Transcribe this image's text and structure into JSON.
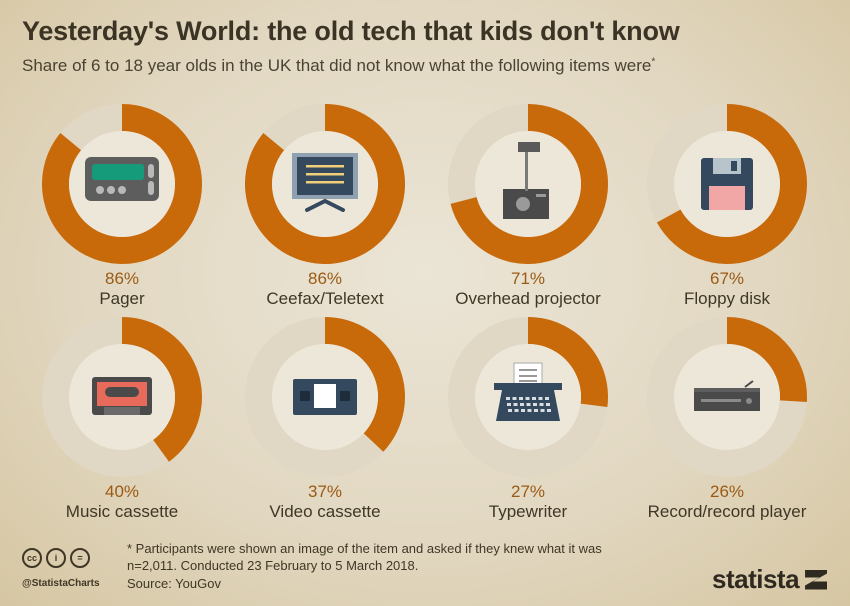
{
  "title": "Yesterday's World: the old tech that kids don't know",
  "subtitle": "Share of 6 to 18 year olds in the UK that did not know what the following items were",
  "subtitle_mark": "*",
  "colors": {
    "arc": "#c8690a",
    "inner": "#ede7da",
    "track": "#e0d7c4"
  },
  "chart_data": {
    "type": "pie",
    "variant": "donut-grid",
    "title": "Yesterday's World: the old tech that kids don't know",
    "unit": "%",
    "categories": [
      "Pager",
      "Ceefax/Teletext",
      "Overhead projector",
      "Floppy disk",
      "Music cassette",
      "Video cassette",
      "Typewriter",
      "Record/record player"
    ],
    "values": [
      86,
      86,
      71,
      67,
      40,
      37,
      27,
      26
    ],
    "icons": [
      "pager-icon",
      "teletext-tv-icon",
      "overhead-projector-icon",
      "floppy-disk-icon",
      "music-cassette-icon",
      "video-cassette-icon",
      "typewriter-icon",
      "record-player-icon"
    ]
  },
  "footer": {
    "note_line1": "* Participants were shown an image of the item and asked if they knew what it was",
    "note_line2": "n=2,011. Conducted 23 February to 5 March 2018.",
    "source": "Source: YouGov",
    "handle": "@StatistaCharts",
    "brand": "statista",
    "cc": [
      "cc",
      "i",
      "="
    ]
  }
}
